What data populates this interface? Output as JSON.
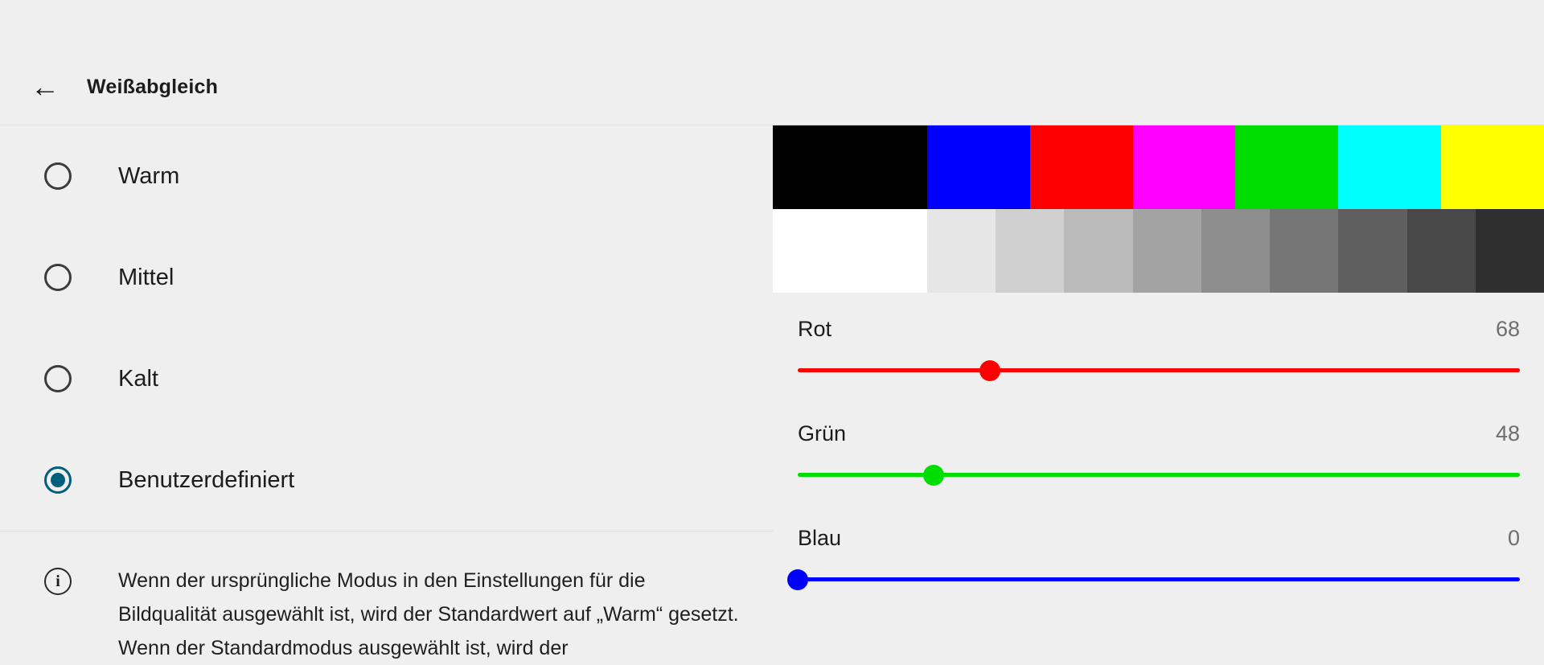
{
  "header": {
    "back_glyph": "←",
    "title": "Weißabgleich"
  },
  "options": [
    {
      "label": "Warm",
      "selected": false
    },
    {
      "label": "Mittel",
      "selected": false
    },
    {
      "label": "Kalt",
      "selected": false
    },
    {
      "label": "Benutzerdefiniert",
      "selected": true
    }
  ],
  "info": {
    "icon_glyph": "i",
    "text": "Wenn der ursprüngliche Modus in den Einstellungen für die Bildqualität ausgewählt ist, wird der Standardwert auf „Warm“ gesetzt. Wenn der Standardmodus ausgewählt ist, wird der"
  },
  "colors": {
    "accent": "#00607a",
    "background": "#efefef",
    "divider": "#d9d9d9",
    "text_primary": "#1c1c1c",
    "value_text": "#6e6e6e"
  },
  "test_pattern": {
    "color_bars": [
      {
        "color": "#000000",
        "weight": 1.5
      },
      {
        "color": "#0000ff",
        "weight": 1
      },
      {
        "color": "#ff0000",
        "weight": 1
      },
      {
        "color": "#ff00ff",
        "weight": 1
      },
      {
        "color": "#00dd00",
        "weight": 1
      },
      {
        "color": "#00ffff",
        "weight": 1
      },
      {
        "color": "#ffff00",
        "weight": 1
      }
    ],
    "gray_bars": [
      {
        "color": "#ffffff",
        "weight": 2.25
      },
      {
        "color": "#e6e6e6",
        "weight": 1
      },
      {
        "color": "#d0d0d0",
        "weight": 1
      },
      {
        "color": "#bababa",
        "weight": 1
      },
      {
        "color": "#a3a3a3",
        "weight": 1
      },
      {
        "color": "#8d8d8d",
        "weight": 1
      },
      {
        "color": "#767676",
        "weight": 1
      },
      {
        "color": "#5f5f5f",
        "weight": 1
      },
      {
        "color": "#484848",
        "weight": 1
      },
      {
        "color": "#2f2f2f",
        "weight": 1
      }
    ]
  },
  "sliders": [
    {
      "label": "Rot",
      "value": 68,
      "max": 255,
      "color": "#ff0000"
    },
    {
      "label": "Grün",
      "value": 48,
      "max": 255,
      "color": "#00dd00"
    },
    {
      "label": "Blau",
      "value": 0,
      "max": 255,
      "color": "#0000ff"
    }
  ]
}
